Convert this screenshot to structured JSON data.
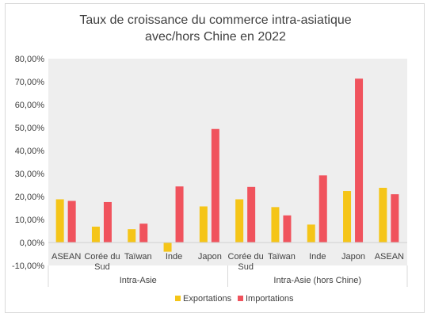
{
  "chart_data": {
    "type": "bar",
    "title_lines": [
      "Taux de croissance du commerce intra-asiatique",
      "avec/hors Chine en 2022"
    ],
    "categories": [
      [
        "ASEAN"
      ],
      [
        "Corée du",
        "Sud"
      ],
      [
        "Taïwan"
      ],
      [
        "Inde"
      ],
      [
        "Japon"
      ],
      [
        "Corée du",
        "Sud"
      ],
      [
        "Taïwan"
      ],
      [
        "Inde"
      ],
      [
        "Japon"
      ],
      [
        "ASEAN"
      ]
    ],
    "groups": [
      {
        "label": "Intra-Asie",
        "span": 5
      },
      {
        "label": "Intra-Asie (hors Chine)",
        "span": 5
      }
    ],
    "series": [
      {
        "name": "Exportations",
        "color": "#f5c518",
        "values": [
          18.8,
          6.9,
          5.8,
          -4.0,
          15.7,
          18.8,
          15.4,
          7.8,
          22.4,
          23.8
        ]
      },
      {
        "name": "Importations",
        "color": "#f0535d",
        "values": [
          18.1,
          17.6,
          8.2,
          24.4,
          49.4,
          24.2,
          11.8,
          29.2,
          71.3,
          21.0
        ]
      }
    ],
    "yticks": [
      "80,00%",
      "70,00%",
      "60,00%",
      "50,00%",
      "40,00%",
      "30,00%",
      "20,00%",
      "10,00%",
      "0,00%",
      "-10,00%"
    ],
    "ylim": [
      -10,
      80
    ],
    "grid": false,
    "background": "#eeeeee",
    "legend_position": "bottom"
  }
}
